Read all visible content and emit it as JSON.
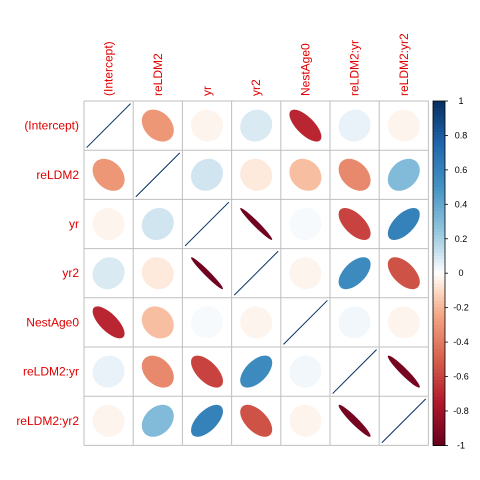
{
  "chart_data": {
    "type": "heatmap",
    "method": "ellipse",
    "variables": [
      "(Intercept)",
      "reLDM2",
      "yr",
      "yr2",
      "NestAge0",
      "reLDM2:yr",
      "reLDM2:yr2"
    ],
    "matrix": [
      [
        1.0,
        -0.3,
        -0.03,
        0.08,
        -0.7,
        0.05,
        -0.03
      ],
      [
        -0.3,
        1.0,
        0.1,
        -0.06,
        -0.18,
        -0.35,
        0.3
      ],
      [
        -0.03,
        0.1,
        1.0,
        -0.97,
        0.02,
        -0.6,
        0.6
      ],
      [
        0.08,
        -0.06,
        -0.97,
        1.0,
        -0.03,
        0.55,
        -0.55
      ],
      [
        -0.7,
        -0.18,
        0.02,
        -0.03,
        1.0,
        0.03,
        -0.03
      ],
      [
        0.05,
        -0.35,
        -0.6,
        0.55,
        0.03,
        1.0,
        -0.95
      ],
      [
        -0.03,
        0.3,
        0.6,
        -0.55,
        -0.03,
        -0.95,
        1.0
      ]
    ],
    "colorbar": {
      "min": -1,
      "max": 1,
      "ticks": [
        "1",
        "0.8",
        "0.6",
        "0.4",
        "0.2",
        "0",
        "-0.2",
        "-0.4",
        "-0.6",
        "-0.8",
        "-1"
      ]
    },
    "label_color": "#e00000",
    "grid": true
  }
}
